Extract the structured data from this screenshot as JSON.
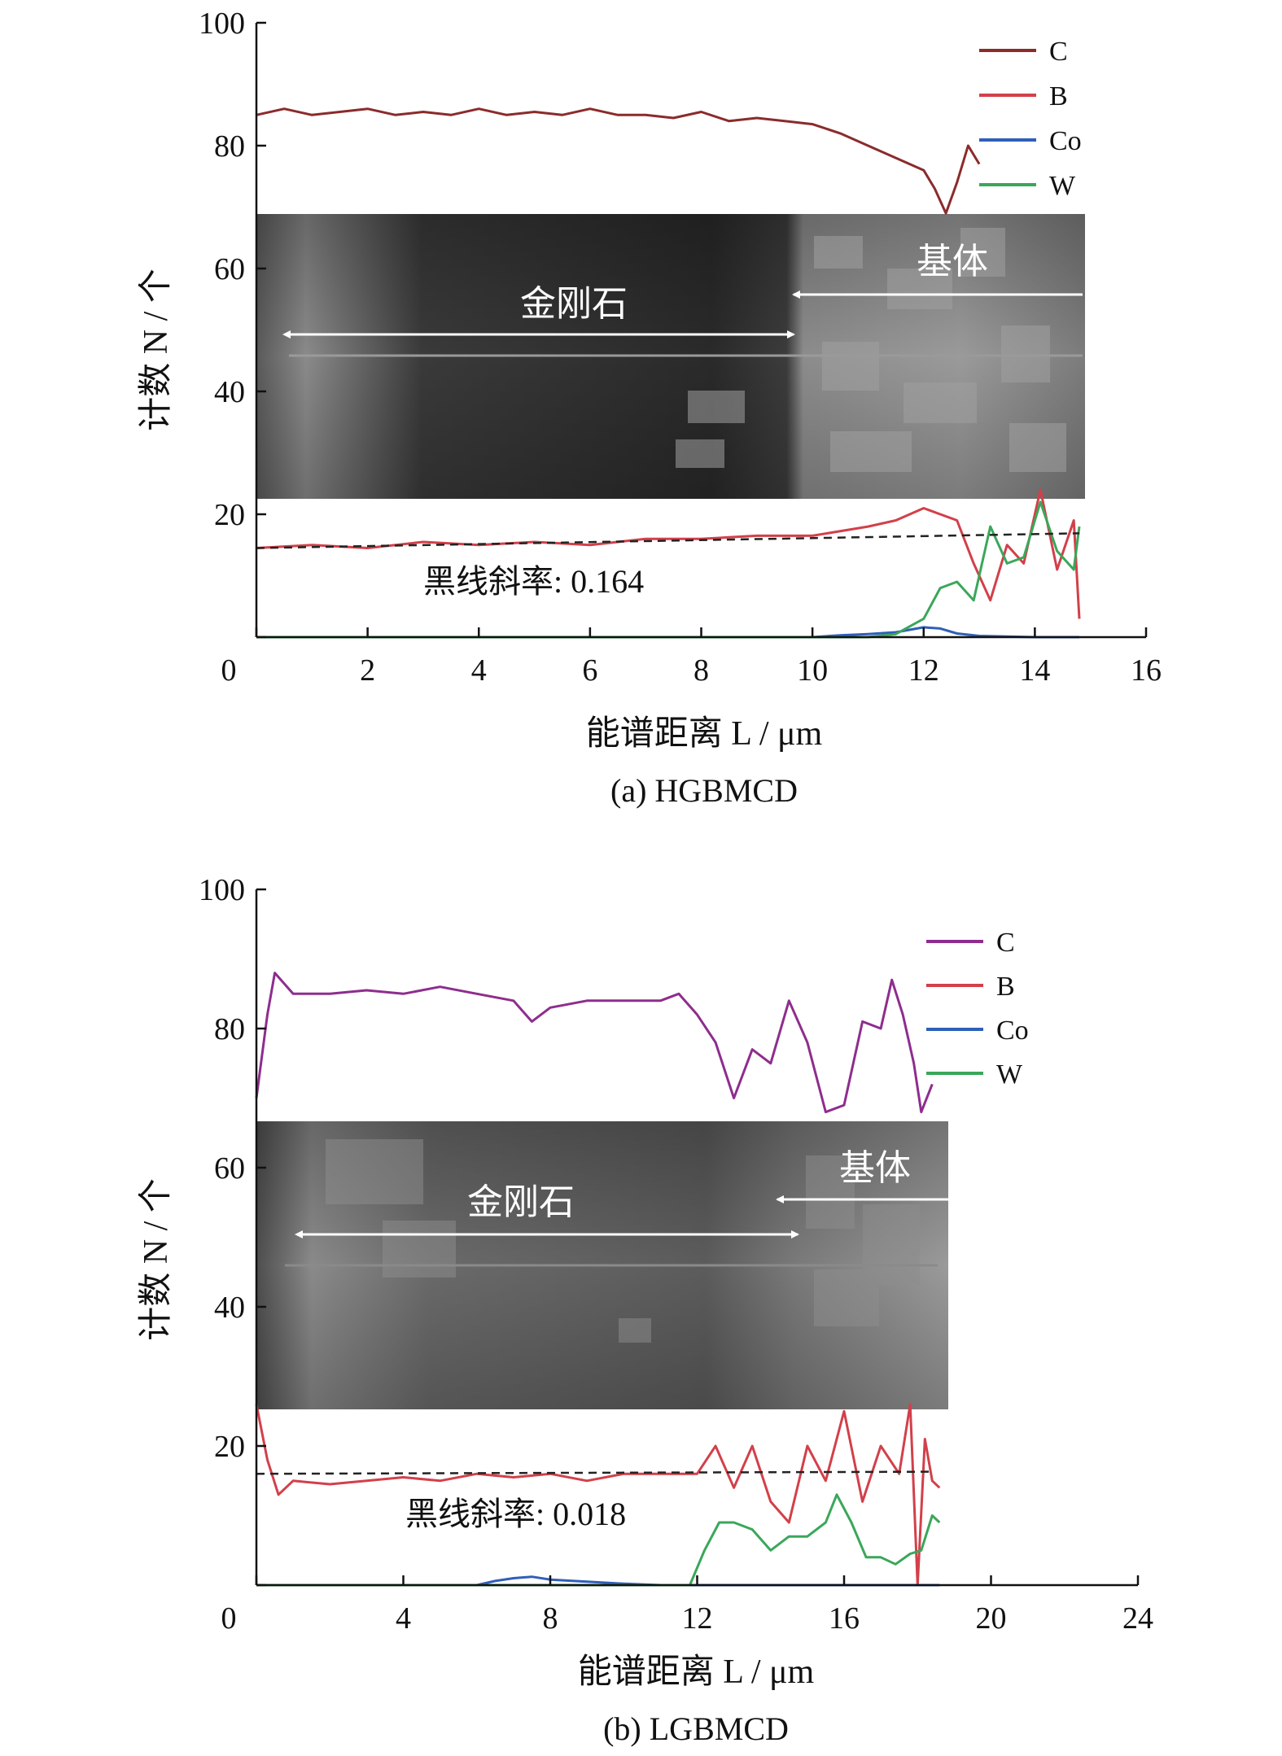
{
  "chart_data": [
    {
      "type": "line",
      "caption": "(a) HGBMCD",
      "xlabel": "能谱距离 L / μm",
      "ylabel": "计数 N / 个",
      "xlim": [
        0,
        16
      ],
      "ylim": [
        0,
        100
      ],
      "xticks": [
        0,
        2,
        4,
        6,
        8,
        10,
        12,
        14,
        16
      ],
      "yticks": [
        0,
        20,
        40,
        60,
        80,
        100
      ],
      "inset": {
        "region_label": "金刚石",
        "substrate_label": "基体"
      },
      "annotation": "黑线斜率: 0.164",
      "fit_line": {
        "x": [
          0,
          14.8
        ],
        "y": [
          14.5,
          16.9
        ]
      },
      "series": [
        {
          "name": "C",
          "color": "#8b2b2b",
          "x": [
            0,
            0.5,
            1,
            1.5,
            2,
            2.5,
            3,
            3.5,
            4,
            4.5,
            5,
            5.5,
            6,
            6.5,
            7,
            7.5,
            8,
            8.5,
            9,
            9.5,
            10,
            10.5,
            11,
            11.5,
            12,
            12.2,
            12.4,
            12.6,
            12.8,
            13
          ],
          "values": [
            85,
            86,
            85,
            85.5,
            86,
            85,
            85.5,
            85,
            86,
            85,
            85.5,
            85,
            86,
            85,
            85,
            84.5,
            85.5,
            84,
            84.5,
            84,
            83.5,
            82,
            80,
            78,
            76,
            73,
            69,
            74,
            80,
            77
          ]
        },
        {
          "name": "B",
          "color": "#d2404a",
          "x": [
            0,
            1,
            2,
            3,
            4,
            5,
            6,
            7,
            8,
            9,
            10,
            11,
            11.5,
            12,
            12.3,
            12.6,
            12.9,
            13.2,
            13.5,
            13.8,
            14.1,
            14.4,
            14.7,
            14.8
          ],
          "values": [
            14.5,
            15,
            14.5,
            15.5,
            15,
            15.5,
            15,
            16,
            16,
            16.5,
            16.5,
            18,
            19,
            21,
            20,
            19,
            12,
            6,
            15,
            12,
            24,
            11,
            19,
            3
          ]
        },
        {
          "name": "Co",
          "color": "#2f5fb8",
          "x": [
            0,
            10,
            10.5,
            11,
            11.5,
            12,
            12.3,
            12.6,
            13,
            14,
            14.8
          ],
          "values": [
            0,
            0,
            0.3,
            0.5,
            0.8,
            1.6,
            1.4,
            0.6,
            0.2,
            0,
            0
          ]
        },
        {
          "name": "W",
          "color": "#3aa75a",
          "x": [
            0,
            11,
            11.5,
            12,
            12.3,
            12.6,
            12.9,
            13.2,
            13.5,
            13.8,
            14.1,
            14.4,
            14.7,
            14.8
          ],
          "values": [
            0,
            0,
            0.5,
            3,
            8,
            9,
            6,
            18,
            12,
            13,
            22,
            14,
            11,
            18
          ]
        }
      ]
    },
    {
      "type": "line",
      "caption": "(b) LGBMCD",
      "xlabel": "能谱距离 L / μm",
      "ylabel": "计数 N / 个",
      "xlim": [
        0,
        24
      ],
      "ylim": [
        0,
        100
      ],
      "xticks": [
        0,
        4,
        8,
        12,
        16,
        20,
        24
      ],
      "yticks": [
        0,
        20,
        40,
        60,
        80,
        100
      ],
      "inset": {
        "region_label": "金刚石",
        "substrate_label": "基体"
      },
      "annotation": "黑线斜率: 0.018",
      "fit_line": {
        "x": [
          0,
          18.4
        ],
        "y": [
          16,
          16.3
        ]
      },
      "series": [
        {
          "name": "C",
          "color": "#8e2d8e",
          "x": [
            0,
            0.3,
            0.5,
            1,
            2,
            3,
            4,
            5,
            6,
            7,
            7.5,
            8,
            9,
            10,
            11,
            11.5,
            12,
            12.5,
            13,
            13.5,
            14,
            14.5,
            15,
            15.5,
            16,
            16.5,
            17,
            17.3,
            17.6,
            17.9,
            18.1,
            18.4
          ],
          "values": [
            70,
            82,
            88,
            85,
            85,
            85.5,
            85,
            86,
            85,
            84,
            81,
            83,
            84,
            84,
            84,
            85,
            82,
            78,
            70,
            77,
            75,
            84,
            78,
            68,
            69,
            81,
            80,
            87,
            82,
            75,
            68,
            72
          ]
        },
        {
          "name": "B",
          "color": "#d2404a",
          "x": [
            0,
            0.3,
            0.6,
            1,
            2,
            3,
            4,
            5,
            6,
            7,
            8,
            9,
            10,
            11,
            12,
            12.5,
            13,
            13.5,
            14,
            14.5,
            15,
            15.5,
            16,
            16.5,
            17,
            17.5,
            17.8,
            18,
            18.2,
            18.4,
            18.6
          ],
          "values": [
            26,
            18,
            13,
            15,
            14.5,
            15,
            15.5,
            15,
            16,
            15.5,
            16,
            15,
            16,
            16,
            16,
            20,
            14,
            20,
            12,
            9,
            20,
            15,
            25,
            12,
            20,
            16,
            26,
            0,
            21,
            15,
            14
          ]
        },
        {
          "name": "Co",
          "color": "#2f5fb8",
          "x": [
            0,
            6,
            6.5,
            7,
            7.5,
            8,
            9,
            10,
            11,
            12,
            14,
            16,
            18,
            18.6
          ],
          "values": [
            0,
            0,
            0.6,
            1,
            1.2,
            0.8,
            0.5,
            0.2,
            0,
            0,
            0,
            0,
            0,
            0
          ]
        },
        {
          "name": "W",
          "color": "#3aa75a",
          "x": [
            0,
            11.8,
            12.2,
            12.6,
            13,
            13.5,
            14,
            14.5,
            15,
            15.5,
            15.8,
            16.2,
            16.6,
            17,
            17.4,
            17.8,
            18.1,
            18.4,
            18.6
          ],
          "values": [
            0,
            0,
            5,
            9,
            9,
            8,
            5,
            7,
            7,
            9,
            13,
            9,
            4,
            4,
            3,
            4.5,
            5,
            10,
            9
          ]
        }
      ]
    }
  ]
}
